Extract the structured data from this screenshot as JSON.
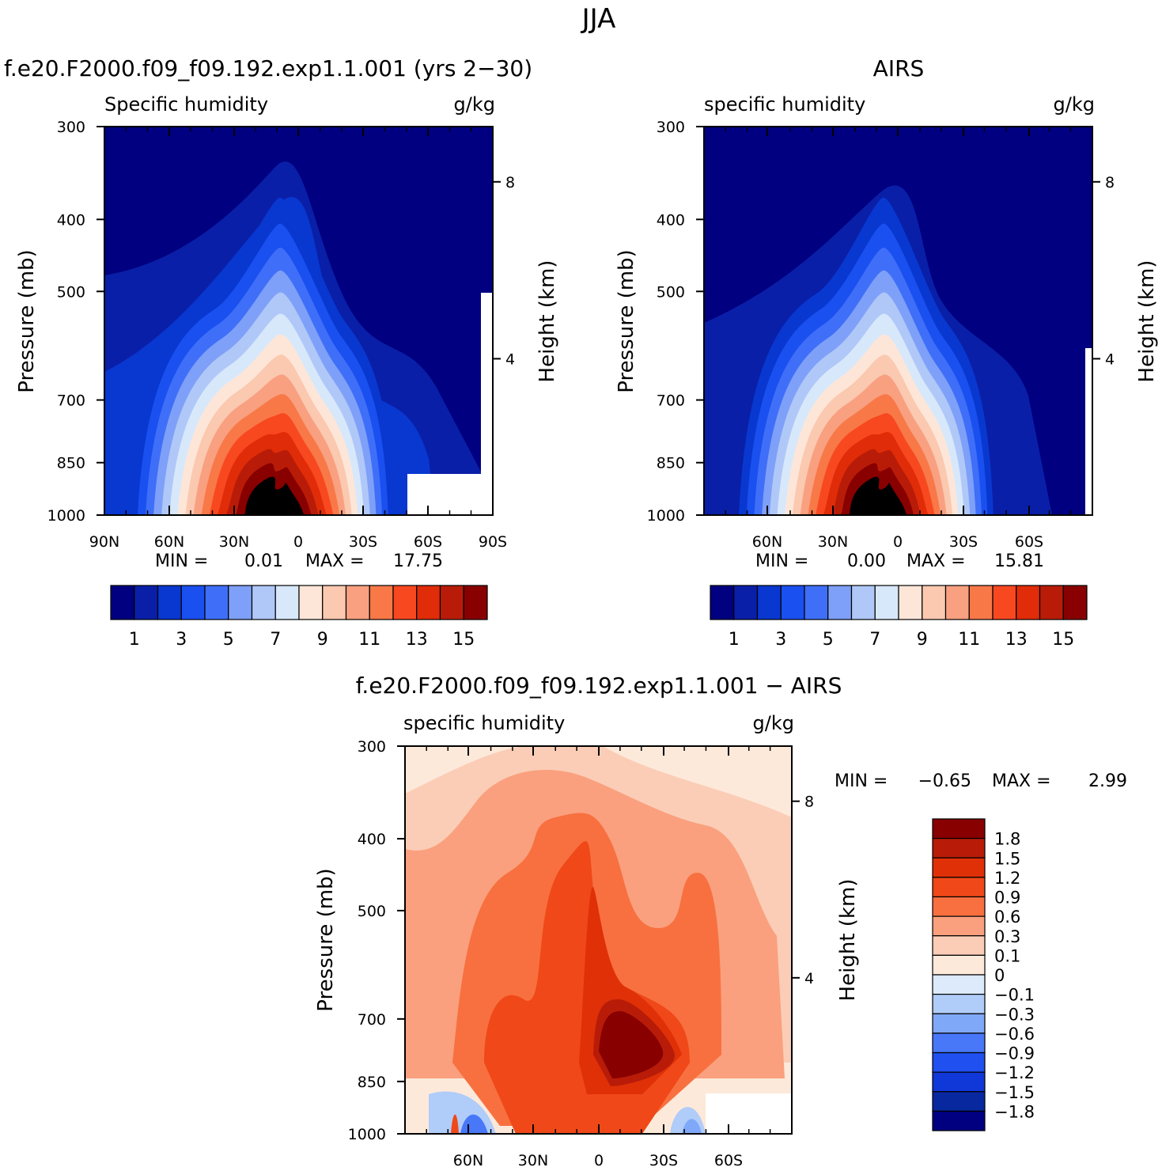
{
  "page_title": "JJA",
  "colors": {
    "seq": [
      "#000080",
      "#0a1fa8",
      "#0838d0",
      "#1a4ff0",
      "#3f6ff8",
      "#7fa0f8",
      "#b0c8f8",
      "#d8e8fb",
      "#fde6d8",
      "#fbc8b0",
      "#f8a080",
      "#f87848",
      "#f84820",
      "#e02c08",
      "#b81c08",
      "#880000"
    ],
    "diff": [
      "#000080",
      "#0828a0",
      "#1038d8",
      "#2050f0",
      "#4878f8",
      "#80a8f8",
      "#b0ccf8",
      "#dceafc",
      "#fde9da",
      "#fbcdb6",
      "#faa07e",
      "#f87040",
      "#f04818",
      "#e03008",
      "#b81c08",
      "#880000"
    ]
  },
  "chart_data": [
    {
      "id": "model",
      "type": "contour",
      "title": "f.e20.F2000.f09_f09.192.exp1.1.001 (yrs 2−30)",
      "left_label": "Specific humidity",
      "right_label": "g/kg",
      "ylabel": "Pressure (mb)",
      "ylabel2": "Height (km)",
      "y_ticks": [
        "300",
        "400",
        "500",
        "700",
        "850",
        "1000"
      ],
      "height_ticks": [
        "8",
        "4"
      ],
      "x_ticks": [
        "90N",
        "60N",
        "30N",
        "0",
        "30S",
        "60S",
        "90S"
      ],
      "min_label": "MIN =",
      "min_value": "0.01",
      "max_label": "MAX =",
      "max_value": "17.75",
      "colorbar_labels": [
        "1",
        "3",
        "5",
        "7",
        "9",
        "11",
        "13",
        "15"
      ],
      "levels": [
        1,
        2,
        3,
        4,
        5,
        6,
        7,
        8,
        9,
        10,
        11,
        12,
        13,
        14,
        15
      ]
    },
    {
      "id": "obs",
      "type": "contour",
      "title": "AIRS",
      "left_label": "specific humidity",
      "right_label": "g/kg",
      "ylabel": "Pressure (mb)",
      "ylabel2": "Height (km)",
      "y_ticks": [
        "300",
        "400",
        "500",
        "700",
        "850",
        "1000"
      ],
      "height_ticks": [
        "8",
        "4"
      ],
      "x_ticks": [
        "60N",
        "30N",
        "0",
        "30S",
        "60S"
      ],
      "min_label": "MIN =",
      "min_value": "0.00",
      "max_label": "MAX =",
      "max_value": "15.81",
      "colorbar_labels": [
        "1",
        "3",
        "5",
        "7",
        "9",
        "11",
        "13",
        "15"
      ],
      "levels": [
        1,
        2,
        3,
        4,
        5,
        6,
        7,
        8,
        9,
        10,
        11,
        12,
        13,
        14,
        15
      ]
    },
    {
      "id": "diff",
      "type": "contour",
      "title": "f.e20.F2000.f09_f09.192.exp1.1.001 − AIRS",
      "left_label": "specific humidity",
      "right_label": "g/kg",
      "ylabel": "Pressure (mb)",
      "ylabel2": "Height (km)",
      "y_ticks": [
        "300",
        "400",
        "500",
        "700",
        "850",
        "1000"
      ],
      "height_ticks": [
        "8",
        "4"
      ],
      "x_ticks": [
        "60N",
        "30N",
        "0",
        "30S",
        "60S"
      ],
      "min_label": "MIN =",
      "min_value": "−0.65",
      "max_label": "MAX =",
      "max_value": "2.99",
      "colorbar_labels": [
        "1.8",
        "1.5",
        "1.2",
        "0.9",
        "0.6",
        "0.3",
        "0.1",
        "0",
        "−0.1",
        "−0.3",
        "−0.6",
        "−0.9",
        "−1.2",
        "−1.5",
        "−1.8"
      ]
    }
  ]
}
